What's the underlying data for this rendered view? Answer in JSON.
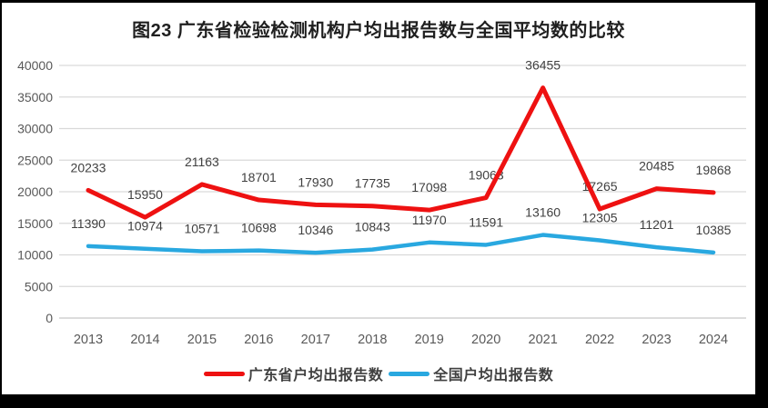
{
  "title": "图23  广东省检验检测机构户均出报告数与全国平均数的比较",
  "chart_data": {
    "type": "line",
    "title": "图23  广东省检验检测机构户均出报告数与全国平均数的比较",
    "categories": [
      "2013",
      "2014",
      "2015",
      "2016",
      "2017",
      "2018",
      "2019",
      "2020",
      "2021",
      "2022",
      "2023",
      "2024"
    ],
    "series": [
      {
        "name": "广东省户均出报告数",
        "color": "#EE1111",
        "values": [
          20233,
          15950,
          21163,
          18701,
          17930,
          17735,
          17098,
          19063,
          36455,
          17265,
          20485,
          19868
        ]
      },
      {
        "name": "全国户均出报告数",
        "color": "#29A8E0",
        "values": [
          11390,
          10974,
          10571,
          10698,
          10346,
          10843,
          11970,
          11591,
          13160,
          12305,
          11201,
          10385
        ]
      }
    ],
    "ylim": [
      0,
      40000
    ],
    "yticks": [
      0,
      5000,
      10000,
      15000,
      20000,
      25000,
      30000,
      35000,
      40000
    ],
    "xlabel": "",
    "ylabel": "",
    "grid": true,
    "data_labels": true,
    "legend_position": "bottom"
  },
  "colors": {
    "grid": "#D9D9D9",
    "baseline": "#C6C6C6",
    "axis_text": "#595959",
    "data_label": "#404040",
    "background": "#FFFFFF",
    "frame": "#000000"
  }
}
